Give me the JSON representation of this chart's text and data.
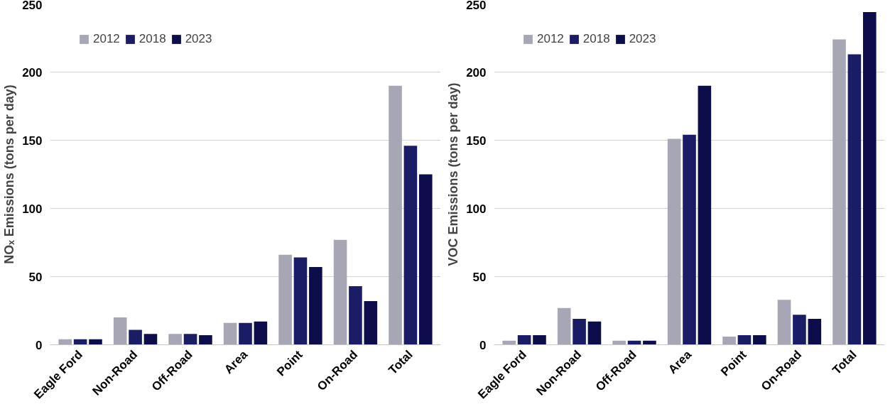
{
  "chart_data": [
    {
      "type": "bar",
      "ylabel": "NOₓ Emissions (tons per day)",
      "categories": [
        "Eagle Ford",
        "Non-Road",
        "Off-Road",
        "Area",
        "Point",
        "On-Road",
        "Total"
      ],
      "ylim": [
        0,
        250
      ],
      "yticks": [
        0,
        50,
        100,
        150,
        200,
        250
      ],
      "grid": "y",
      "legend": "top left",
      "series": [
        {
          "name": "2012",
          "color": "#a6a6b4",
          "values": [
            4,
            20,
            8,
            16,
            66,
            77,
            190
          ]
        },
        {
          "name": "2018",
          "color": "#1a1c66",
          "values": [
            4,
            11,
            8,
            16,
            64,
            43,
            146
          ]
        },
        {
          "name": "2023",
          "color": "#0d0d4c",
          "values": [
            4,
            8,
            7,
            17,
            57,
            32,
            125
          ]
        }
      ]
    },
    {
      "type": "bar",
      "ylabel": "VOC Emissions (tons per day)",
      "categories": [
        "Eagle Ford",
        "Non-Road",
        "Off-Road",
        "Area",
        "Point",
        "On-Road",
        "Total"
      ],
      "ylim": [
        0,
        250
      ],
      "yticks": [
        0,
        50,
        100,
        150,
        200,
        250
      ],
      "grid": "y",
      "legend": "top left",
      "series": [
        {
          "name": "2012",
          "color": "#a6a6b4",
          "values": [
            3,
            27,
            3,
            151,
            6,
            33,
            224
          ]
        },
        {
          "name": "2018",
          "color": "#1a1c66",
          "values": [
            7,
            19,
            3,
            154,
            7,
            22,
            213
          ]
        },
        {
          "name": "2023",
          "color": "#0d0d4c",
          "values": [
            7,
            17,
            3,
            190,
            7,
            19,
            244
          ]
        }
      ]
    }
  ]
}
